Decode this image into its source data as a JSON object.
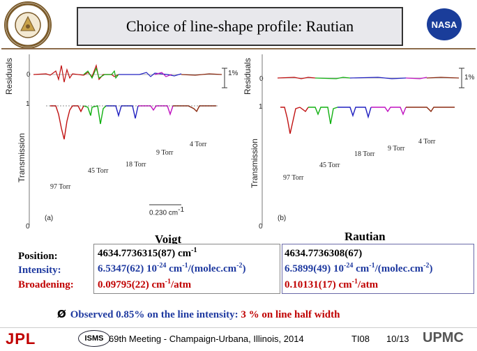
{
  "title": "Choice of line-shape profile: Rautian",
  "logos": {
    "left": "university-seal",
    "right": "NASA",
    "nasa_text": "NASA"
  },
  "panel_left": {
    "residuals_label": "Residuals",
    "transmission_label": "Transmission",
    "tick_zero_res": "0",
    "tick_one": "1",
    "tick_zero": "0",
    "scale_bar": "1%",
    "panel_letter": "(a)",
    "wavenumber_bar": "0.230 cm",
    "wavenumber_sup": "-1",
    "pressures": [
      "4 Torr",
      "9 Torr",
      "18 Torr",
      "45 Torr",
      "97 Torr"
    ]
  },
  "panel_right": {
    "residuals_label": "Residuals",
    "transmission_label": "Transmission",
    "tick_zero_res": "0",
    "tick_one": "1",
    "tick_zero": "0",
    "scale_bar": "1%",
    "panel_letter": "(b)",
    "pressures": [
      "4 Torr",
      "9 Torr",
      "18 Torr",
      "45 Torr",
      "97 Torr"
    ]
  },
  "results": {
    "voigt_header": "Voigt",
    "rautian_header": "Rautian",
    "labels": {
      "position": "Position:",
      "intensity": "Intensity:",
      "broadening": "Broadening:"
    },
    "voigt": {
      "position": "4634.7736315(87) cm",
      "position_sup": "-1",
      "intensity_a": "6.5347(62) 10",
      "intensity_sup1": "-24",
      "intensity_b": " cm",
      "intensity_sup2": "-1",
      "intensity_c": "/(molec.cm",
      "intensity_sup3": "-2",
      "intensity_d": ")",
      "broadening": "0.09795(22) cm",
      "broadening_sup": "-1",
      "broadening_unit": "/atm"
    },
    "rautian": {
      "position": "4634.7736308(67)",
      "intensity_a": "6.5899(49) 10",
      "intensity_sup1": "-24",
      "intensity_b": " cm",
      "intensity_sup2": "-1",
      "intensity_c": "/(molec.cm",
      "intensity_sup3": "-2",
      "intensity_d": ")",
      "broadening": "0.10131(17) cm",
      "broadening_sup": "-1",
      "broadening_unit": "/atm"
    }
  },
  "note": {
    "arrow": "Ø",
    "text_black": "Observed 0.85% on the line intensity: ",
    "text_red": "3 % on line half width"
  },
  "footer": {
    "jpl": "JPL",
    "isms": "ISMS",
    "meeting": "69th Meeting - Champaign-Urbana, Illinois, 2014",
    "session": "TI08",
    "page": "10/13",
    "upmc": "UPMC"
  },
  "colors": {
    "title_bg": "#e8e8ec",
    "panel_border": "#888888",
    "series": [
      "#c01010",
      "#202020",
      "#10b010",
      "#2020c0",
      "#c010c0",
      "#8b2a10"
    ],
    "highlight_red": "#c00000",
    "blue_text": "#1f3aa0"
  }
}
